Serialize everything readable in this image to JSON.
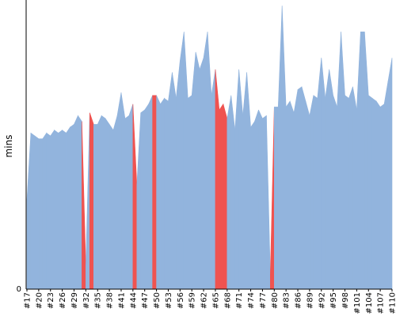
{
  "chart_data": {
    "type": "area",
    "title": "",
    "xlabel": "",
    "ylabel": "mins",
    "ylim": [
      0,
      100
    ],
    "y_ticks": [
      0
    ],
    "grid": false,
    "colors": {
      "normal": "#92b4dd",
      "flagged": "#ef5350"
    },
    "x_tick_labels": [
      "#17",
      "#20",
      "#23",
      "#26",
      "#29",
      "#32",
      "#35",
      "#38",
      "#41",
      "#44",
      "#47",
      "#50",
      "#53",
      "#56",
      "#59",
      "#62",
      "#65",
      "#68",
      "#71",
      "#74",
      "#77",
      "#80",
      "#83",
      "#86",
      "#89",
      "#92",
      "#95",
      "#98",
      "#101",
      "#104",
      "#107",
      "#110"
    ],
    "x_start": 17,
    "values": [
      31,
      54,
      53,
      52,
      52,
      54,
      53,
      55,
      54,
      55,
      54,
      56,
      57,
      60,
      58,
      8,
      61,
      57,
      57,
      60,
      59,
      57,
      55,
      60,
      68,
      59,
      60,
      64,
      36,
      61,
      62,
      64,
      67,
      67,
      64,
      66,
      65,
      75,
      66,
      79,
      89,
      66,
      67,
      82,
      76,
      80,
      89,
      67,
      76,
      62,
      64,
      59,
      67,
      55,
      76,
      60,
      75,
      56,
      58,
      62,
      59,
      60,
      5,
      63,
      63,
      98,
      63,
      65,
      61,
      69,
      70,
      65,
      60,
      67,
      66,
      80,
      66,
      76,
      67,
      63,
      89,
      67,
      66,
      70,
      62,
      89,
      89,
      67,
      66,
      65,
      63,
      64,
      72,
      80
    ],
    "flagged_ranges": [
      [
        31,
        32
      ],
      [
        33,
        34
      ],
      [
        44,
        45
      ],
      [
        49,
        50
      ],
      [
        65,
        68
      ],
      [
        79,
        80
      ]
    ]
  }
}
